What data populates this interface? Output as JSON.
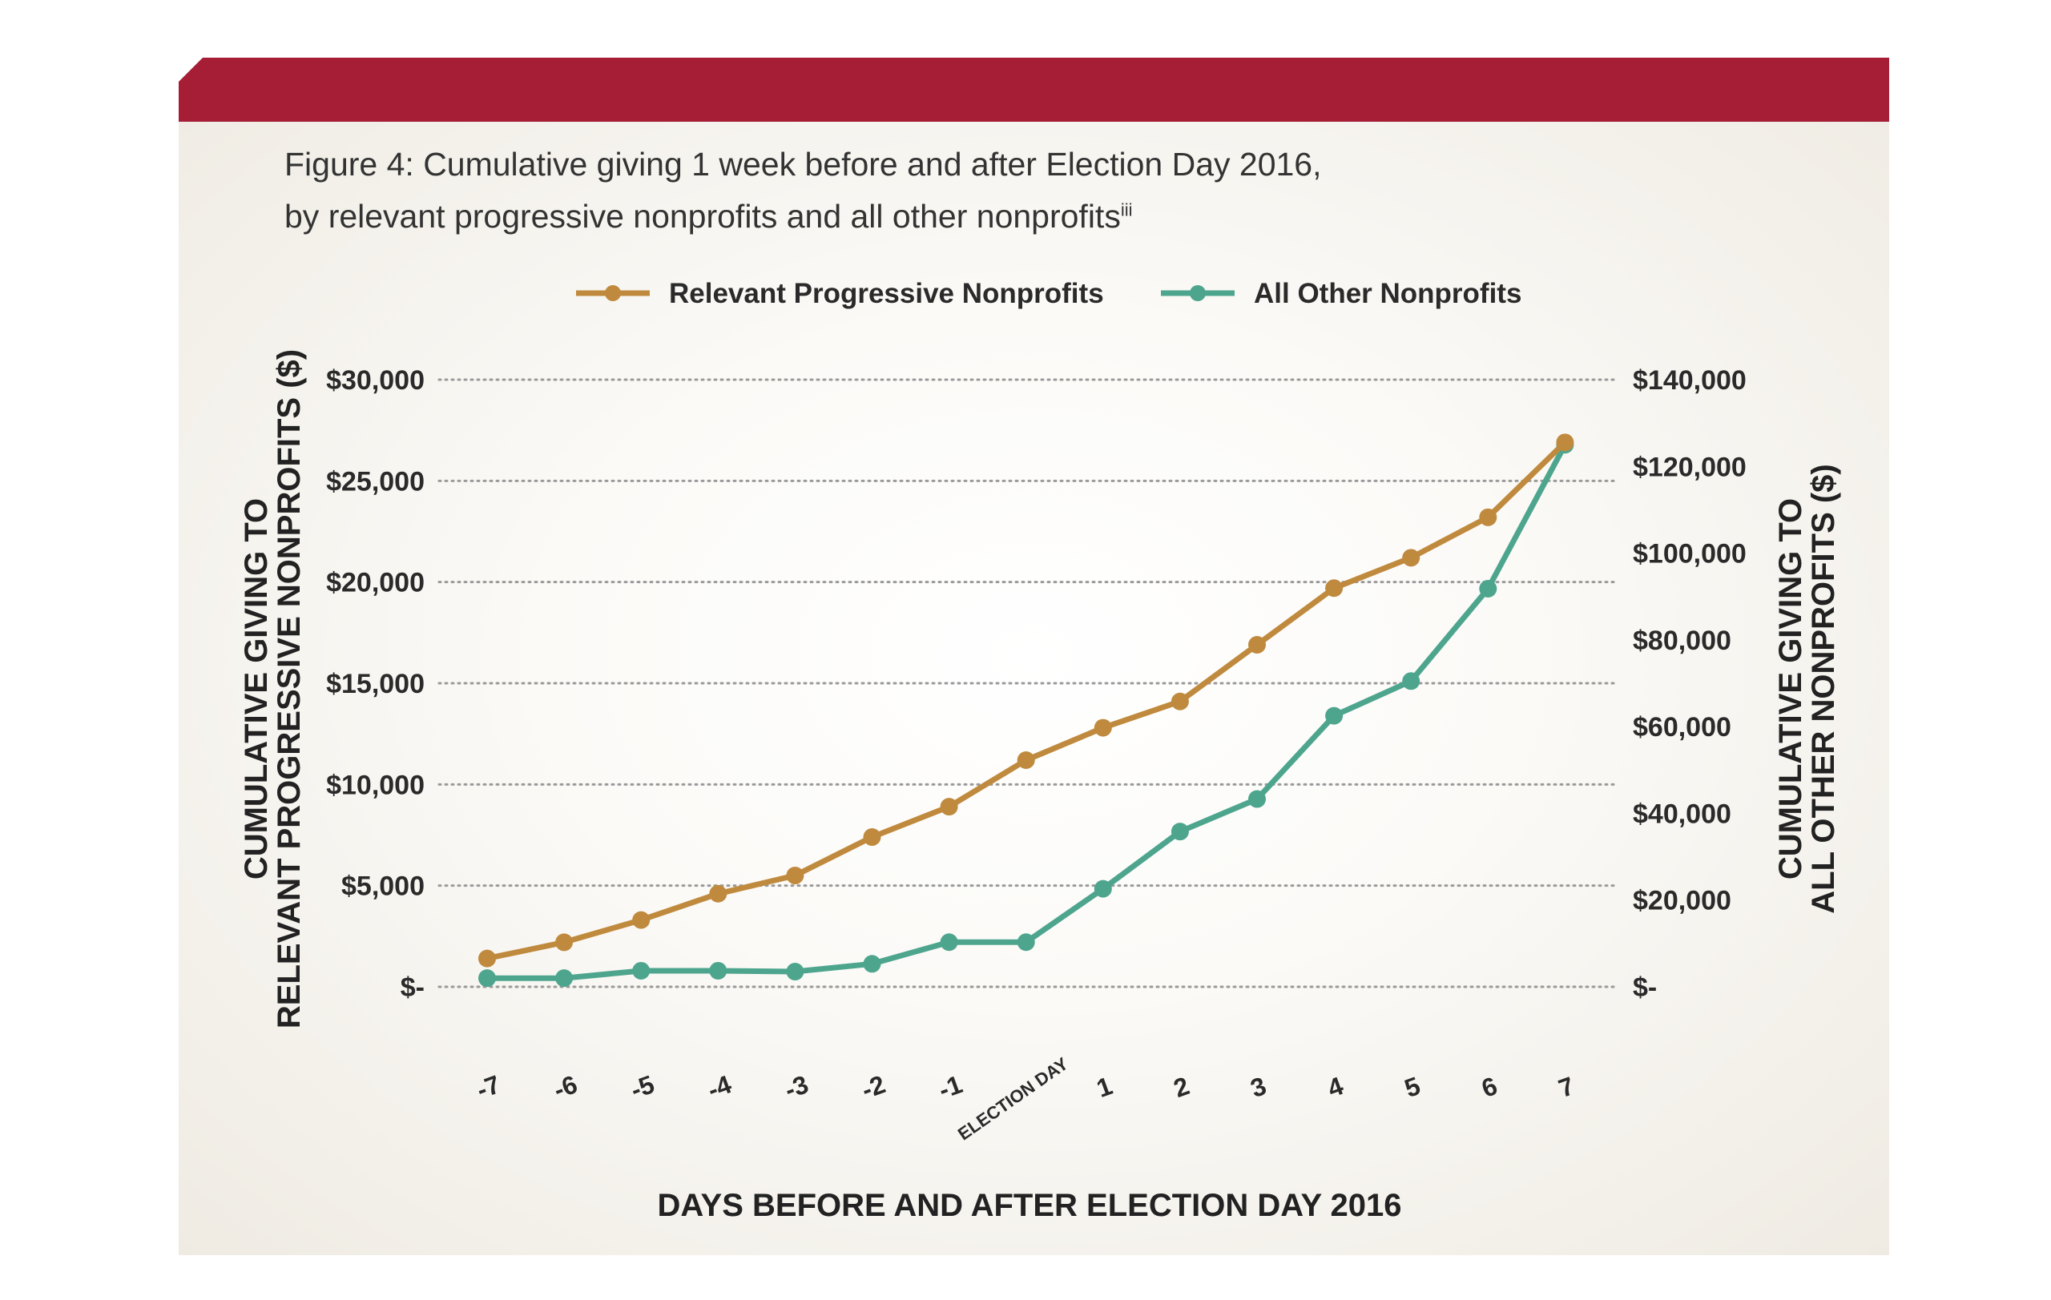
{
  "figure": {
    "title_line1": "Figure 4: Cumulative giving 1 week before and after Election Day 2016,",
    "title_line2": "by relevant progressive nonprofits and all other nonprofits",
    "title_superscript": "iii"
  },
  "chart_data": {
    "type": "line",
    "title": "Figure 4: Cumulative giving 1 week before and after Election Day 2016, by relevant progressive nonprofits and all other nonprofits",
    "categories": [
      "-7",
      "-6",
      "-5",
      "-4",
      "-3",
      "-2",
      "-1",
      "ELECTION DAY",
      "1",
      "2",
      "3",
      "4",
      "5",
      "6",
      "7"
    ],
    "xlabel": "DAYS BEFORE AND AFTER ELECTION DAY 2016",
    "ylabel_left_line1": "CUMULATIVE GIVING TO",
    "ylabel_left_line2": "RELEVANT PROGRESSIVE NONPROFITS ($)",
    "ylabel_right_line1": "CUMULATIVE GIVING TO",
    "ylabel_right_line2": "ALL OTHER NONPROFITS ($)",
    "ylim_left": [
      0,
      30000
    ],
    "ylim_right": [
      0,
      140000
    ],
    "left_ticks": [
      "$-",
      "$5,000",
      "$10,000",
      "$15,000",
      "$20,000",
      "$25,000",
      "$30,000"
    ],
    "right_ticks": [
      "$-",
      "$20,000",
      "$40,000",
      "$60,000",
      "$80,000",
      "$100,000",
      "$120,000",
      "$140,000"
    ],
    "grid": true,
    "legend_position": "top-center",
    "series": [
      {
        "name": "Relevant Progressive Nonprofits",
        "axis": "left",
        "color": "#c08a3e",
        "values": [
          1400,
          2200,
          3300,
          4600,
          5500,
          7400,
          8900,
          11200,
          12800,
          14100,
          16900,
          19700,
          21200,
          23200,
          26900
        ]
      },
      {
        "name": "All Other Nonprofits",
        "axis": "right",
        "color": "#4ea58e",
        "values": [
          2000,
          2000,
          3700,
          3700,
          3500,
          5300,
          10300,
          10300,
          22600,
          35800,
          43300,
          62500,
          70500,
          91800,
          125000
        ]
      }
    ]
  }
}
